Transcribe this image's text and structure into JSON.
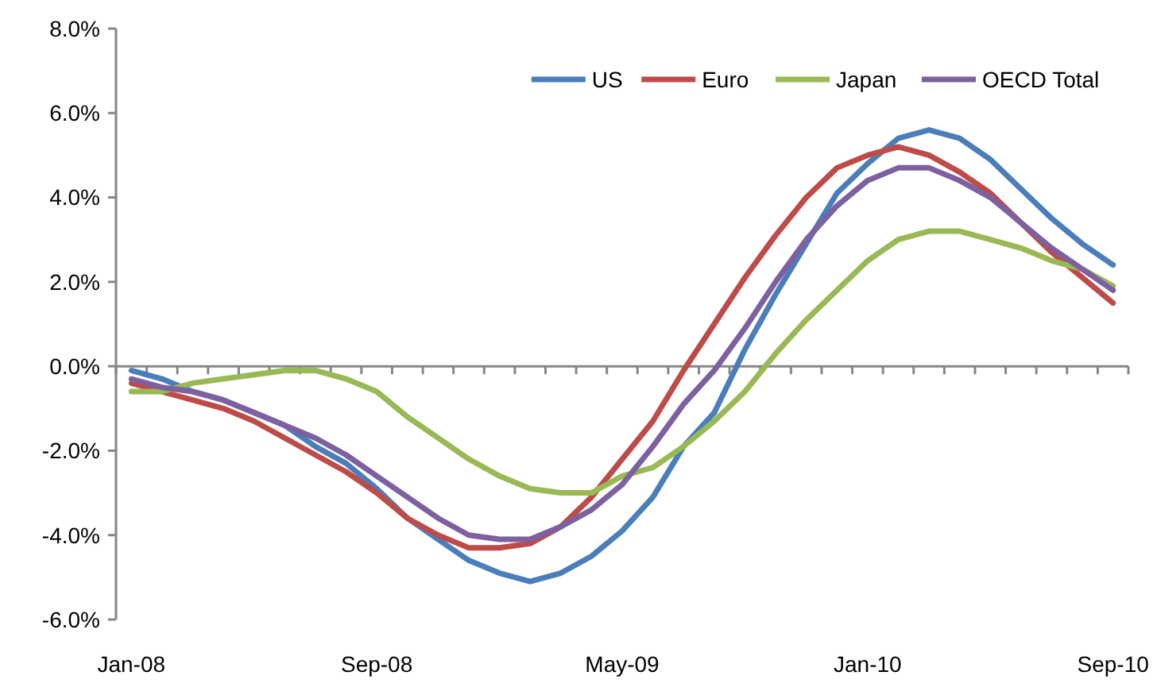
{
  "chart_data": {
    "type": "line",
    "categories": [
      "Jan-08",
      null,
      null,
      null,
      null,
      null,
      null,
      null,
      "Sep-08",
      null,
      null,
      null,
      null,
      null,
      null,
      null,
      "May-09",
      null,
      null,
      null,
      null,
      null,
      null,
      null,
      "Jan-10",
      null,
      null,
      null,
      null,
      null,
      null,
      null,
      "Sep-10"
    ],
    "series": [
      {
        "name": "US",
        "color": "#4a7ebb",
        "values": [
          -0.1,
          -0.3,
          -0.6,
          -0.8,
          -1.1,
          -1.4,
          -1.9,
          -2.3,
          -2.9,
          -3.6,
          -4.1,
          -4.6,
          -4.9,
          -5.1,
          -4.9,
          -4.5,
          -3.9,
          -3.1,
          -1.9,
          -1.1,
          0.4,
          1.7,
          2.9,
          4.1,
          4.8,
          5.4,
          5.6,
          5.4,
          4.9,
          4.2,
          3.5,
          2.9,
          2.4
        ]
      },
      {
        "name": "Euro",
        "color": "#be4b48",
        "values": [
          -0.4,
          -0.6,
          -0.8,
          -1.0,
          -1.3,
          -1.7,
          -2.1,
          -2.5,
          -3.0,
          -3.6,
          -4.0,
          -4.3,
          -4.3,
          -4.2,
          -3.8,
          -3.1,
          -2.2,
          -1.3,
          -0.1,
          1.0,
          2.1,
          3.1,
          4.0,
          4.7,
          5.0,
          5.2,
          5.0,
          4.6,
          4.1,
          3.4,
          2.7,
          2.1,
          1.5
        ]
      },
      {
        "name": "Japan",
        "color": "#98b954",
        "values": [
          -0.6,
          -0.6,
          -0.4,
          -0.3,
          -0.2,
          -0.1,
          -0.1,
          -0.3,
          -0.6,
          -1.2,
          -1.7,
          -2.2,
          -2.6,
          -2.9,
          -3.0,
          -3.0,
          -2.6,
          -2.4,
          -1.9,
          -1.3,
          -0.6,
          0.3,
          1.1,
          1.8,
          2.5,
          3.0,
          3.2,
          3.2,
          3.0,
          2.8,
          2.5,
          2.3,
          1.9
        ]
      },
      {
        "name": "OECD Total",
        "color": "#7d60a0",
        "values": [
          -0.3,
          -0.5,
          -0.6,
          -0.8,
          -1.1,
          -1.4,
          -1.7,
          -2.1,
          -2.6,
          -3.1,
          -3.6,
          -4.0,
          -4.1,
          -4.1,
          -3.8,
          -3.4,
          -2.8,
          -1.9,
          -0.9,
          -0.1,
          0.9,
          2.0,
          3.0,
          3.8,
          4.4,
          4.7,
          4.7,
          4.4,
          4.0,
          3.4,
          2.8,
          2.3,
          1.8
        ]
      }
    ],
    "ylim": [
      -6,
      8
    ],
    "yticks": [
      {
        "value": -6,
        "label": "-6.0%"
      },
      {
        "value": -4,
        "label": "-4.0%"
      },
      {
        "value": -2,
        "label": "-2.0%"
      },
      {
        "value": 0,
        "label": "0.0%"
      },
      {
        "value": 2,
        "label": "2.0%"
      },
      {
        "value": 4,
        "label": "4.0%"
      },
      {
        "value": 6,
        "label": "6.0%"
      },
      {
        "value": 8,
        "label": "8.0%"
      }
    ],
    "legend": "top right",
    "marker": "none",
    "line_style": "solid"
  }
}
